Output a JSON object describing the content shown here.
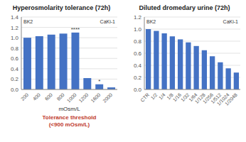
{
  "chart_data": [
    {
      "type": "bar",
      "title": "Hyperosmolarity tolerance (72h)",
      "xlabel": "mOsm/L",
      "categories": [
        "200",
        "400",
        "600",
        "800",
        "1000",
        "1200",
        "1600",
        "2000"
      ],
      "values": [
        1.0,
        1.03,
        1.06,
        1.08,
        1.1,
        0.22,
        0.1,
        0.04
      ],
      "color": "#4472c4",
      "ylim": [
        0,
        1.4
      ],
      "yticks": [
        {
          "value": 0,
          "label": "0.0"
        },
        {
          "value": 0.2,
          "label": "0.2"
        },
        {
          "value": 0.4,
          "label": "0.4"
        },
        {
          "value": 0.6,
          "label": "0.6"
        },
        {
          "value": 0.8,
          "label": "0.8"
        },
        {
          "value": 1.0,
          "label": "1.0"
        },
        {
          "value": 1.2,
          "label": "1.2"
        },
        {
          "value": 1.4,
          "label": "1.4"
        }
      ],
      "grid": true,
      "annotations": [
        {
          "text": "BK2"
        },
        {
          "text": "CaKi-1"
        },
        {
          "text": "****",
          "category": "1000"
        },
        {
          "text": "*",
          "category": "1600"
        },
        {
          "text": "Tolerance threshold\n(<900 mOsm/L)",
          "color": "#c0392b"
        }
      ]
    },
    {
      "type": "bar",
      "title": "Diluted dromedary urine (72h)",
      "categories": [
        "CTR",
        "1/2",
        "1/4",
        "1/8",
        "1/16",
        "1/32",
        "1/64",
        "1/128",
        "1/256",
        "1/512",
        "1/1024",
        "1/2048"
      ],
      "values": [
        1.0,
        0.97,
        0.93,
        0.88,
        0.83,
        0.78,
        0.72,
        0.65,
        0.55,
        0.45,
        0.35,
        0.28
      ],
      "color": "#4472c4",
      "ylim": [
        0,
        1.2
      ],
      "yticks": [
        {
          "value": 0,
          "label": "0.0"
        },
        {
          "value": 0.2,
          "label": "0.2"
        },
        {
          "value": 0.4,
          "label": "0.4"
        },
        {
          "value": 0.6,
          "label": "0.6"
        },
        {
          "value": 0.8,
          "label": "0.8"
        },
        {
          "value": 1.0,
          "label": "1.0"
        },
        {
          "value": 1.2,
          "label": "1.2"
        }
      ],
      "grid": true,
      "annotations": [
        {
          "text": "BK2"
        },
        {
          "text": "CaKi-1"
        }
      ]
    }
  ]
}
